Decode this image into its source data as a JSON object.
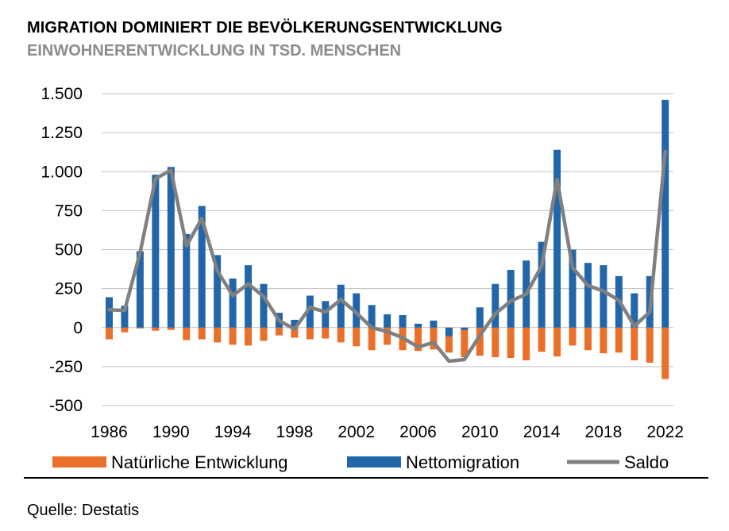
{
  "header": {
    "title": "MIGRATION DOMINIERT DIE BEVÖLKERUNGSENTWICKLUNG",
    "subtitle": "EINWOHNERENTWICKLUNG IN TSD. MENSCHEN"
  },
  "footer": {
    "source": "Quelle: Destatis"
  },
  "colors": {
    "natural": "#E8702A",
    "migration": "#2266AA",
    "saldo": "#808080",
    "grid": "#BFBFBF"
  },
  "chart_data": {
    "type": "bar",
    "title": "MIGRATION DOMINIERT DIE BEVÖLKERUNGSENTWICKLUNG",
    "subtitle": "EINWOHNERENTWICKLUNG IN TSD. MENSCHEN",
    "xlabel": "",
    "ylabel": "",
    "ylim": [
      -500,
      1500
    ],
    "yticks": [
      -500,
      -250,
      0,
      250,
      500,
      750,
      1000,
      1250,
      1500
    ],
    "ytick_labels": [
      "-500",
      "-250",
      "0",
      "250",
      "500",
      "750",
      "1.000",
      "1.250",
      "1.500"
    ],
    "xtick_labels": [
      "1986",
      "1990",
      "1994",
      "1998",
      "2002",
      "2006",
      "2010",
      "2014",
      "2018",
      "2022"
    ],
    "grid": true,
    "legend_position": "bottom",
    "categories": [
      1986,
      1987,
      1988,
      1989,
      1990,
      1991,
      1992,
      1993,
      1994,
      1995,
      1996,
      1997,
      1998,
      1999,
      2000,
      2001,
      2002,
      2003,
      2004,
      2005,
      2006,
      2007,
      2008,
      2009,
      2010,
      2011,
      2012,
      2013,
      2014,
      2015,
      2016,
      2017,
      2018,
      2019,
      2020,
      2021,
      2022
    ],
    "series": [
      {
        "name": "Natürliche Entwicklung",
        "kind": "bar",
        "values": [
          -75,
          -30,
          -5,
          -20,
          -15,
          -80,
          -75,
          -95,
          -110,
          -115,
          -85,
          -50,
          -65,
          -75,
          -70,
          -95,
          -120,
          -145,
          -110,
          -145,
          -150,
          -140,
          -160,
          -190,
          -180,
          -190,
          -195,
          -210,
          -155,
          -185,
          -115,
          -145,
          -165,
          -160,
          -210,
          -225,
          -330
        ]
      },
      {
        "name": "Nettomigration",
        "kind": "bar",
        "values": [
          195,
          140,
          490,
          980,
          1030,
          600,
          780,
          465,
          315,
          400,
          280,
          95,
          50,
          205,
          170,
          275,
          220,
          145,
          85,
          80,
          25,
          45,
          -55,
          -15,
          130,
          280,
          370,
          430,
          550,
          1140,
          500,
          415,
          400,
          330,
          220,
          330,
          1460
        ]
      },
      {
        "name": "Saldo",
        "kind": "line",
        "values": [
          115,
          110,
          480,
          955,
          1010,
          525,
          700,
          365,
          205,
          280,
          200,
          45,
          -10,
          130,
          100,
          180,
          95,
          0,
          -25,
          -65,
          -125,
          -95,
          -215,
          -205,
          -50,
          90,
          170,
          215,
          395,
          950,
          385,
          270,
          235,
          175,
          10,
          100,
          1130
        ]
      }
    ]
  }
}
